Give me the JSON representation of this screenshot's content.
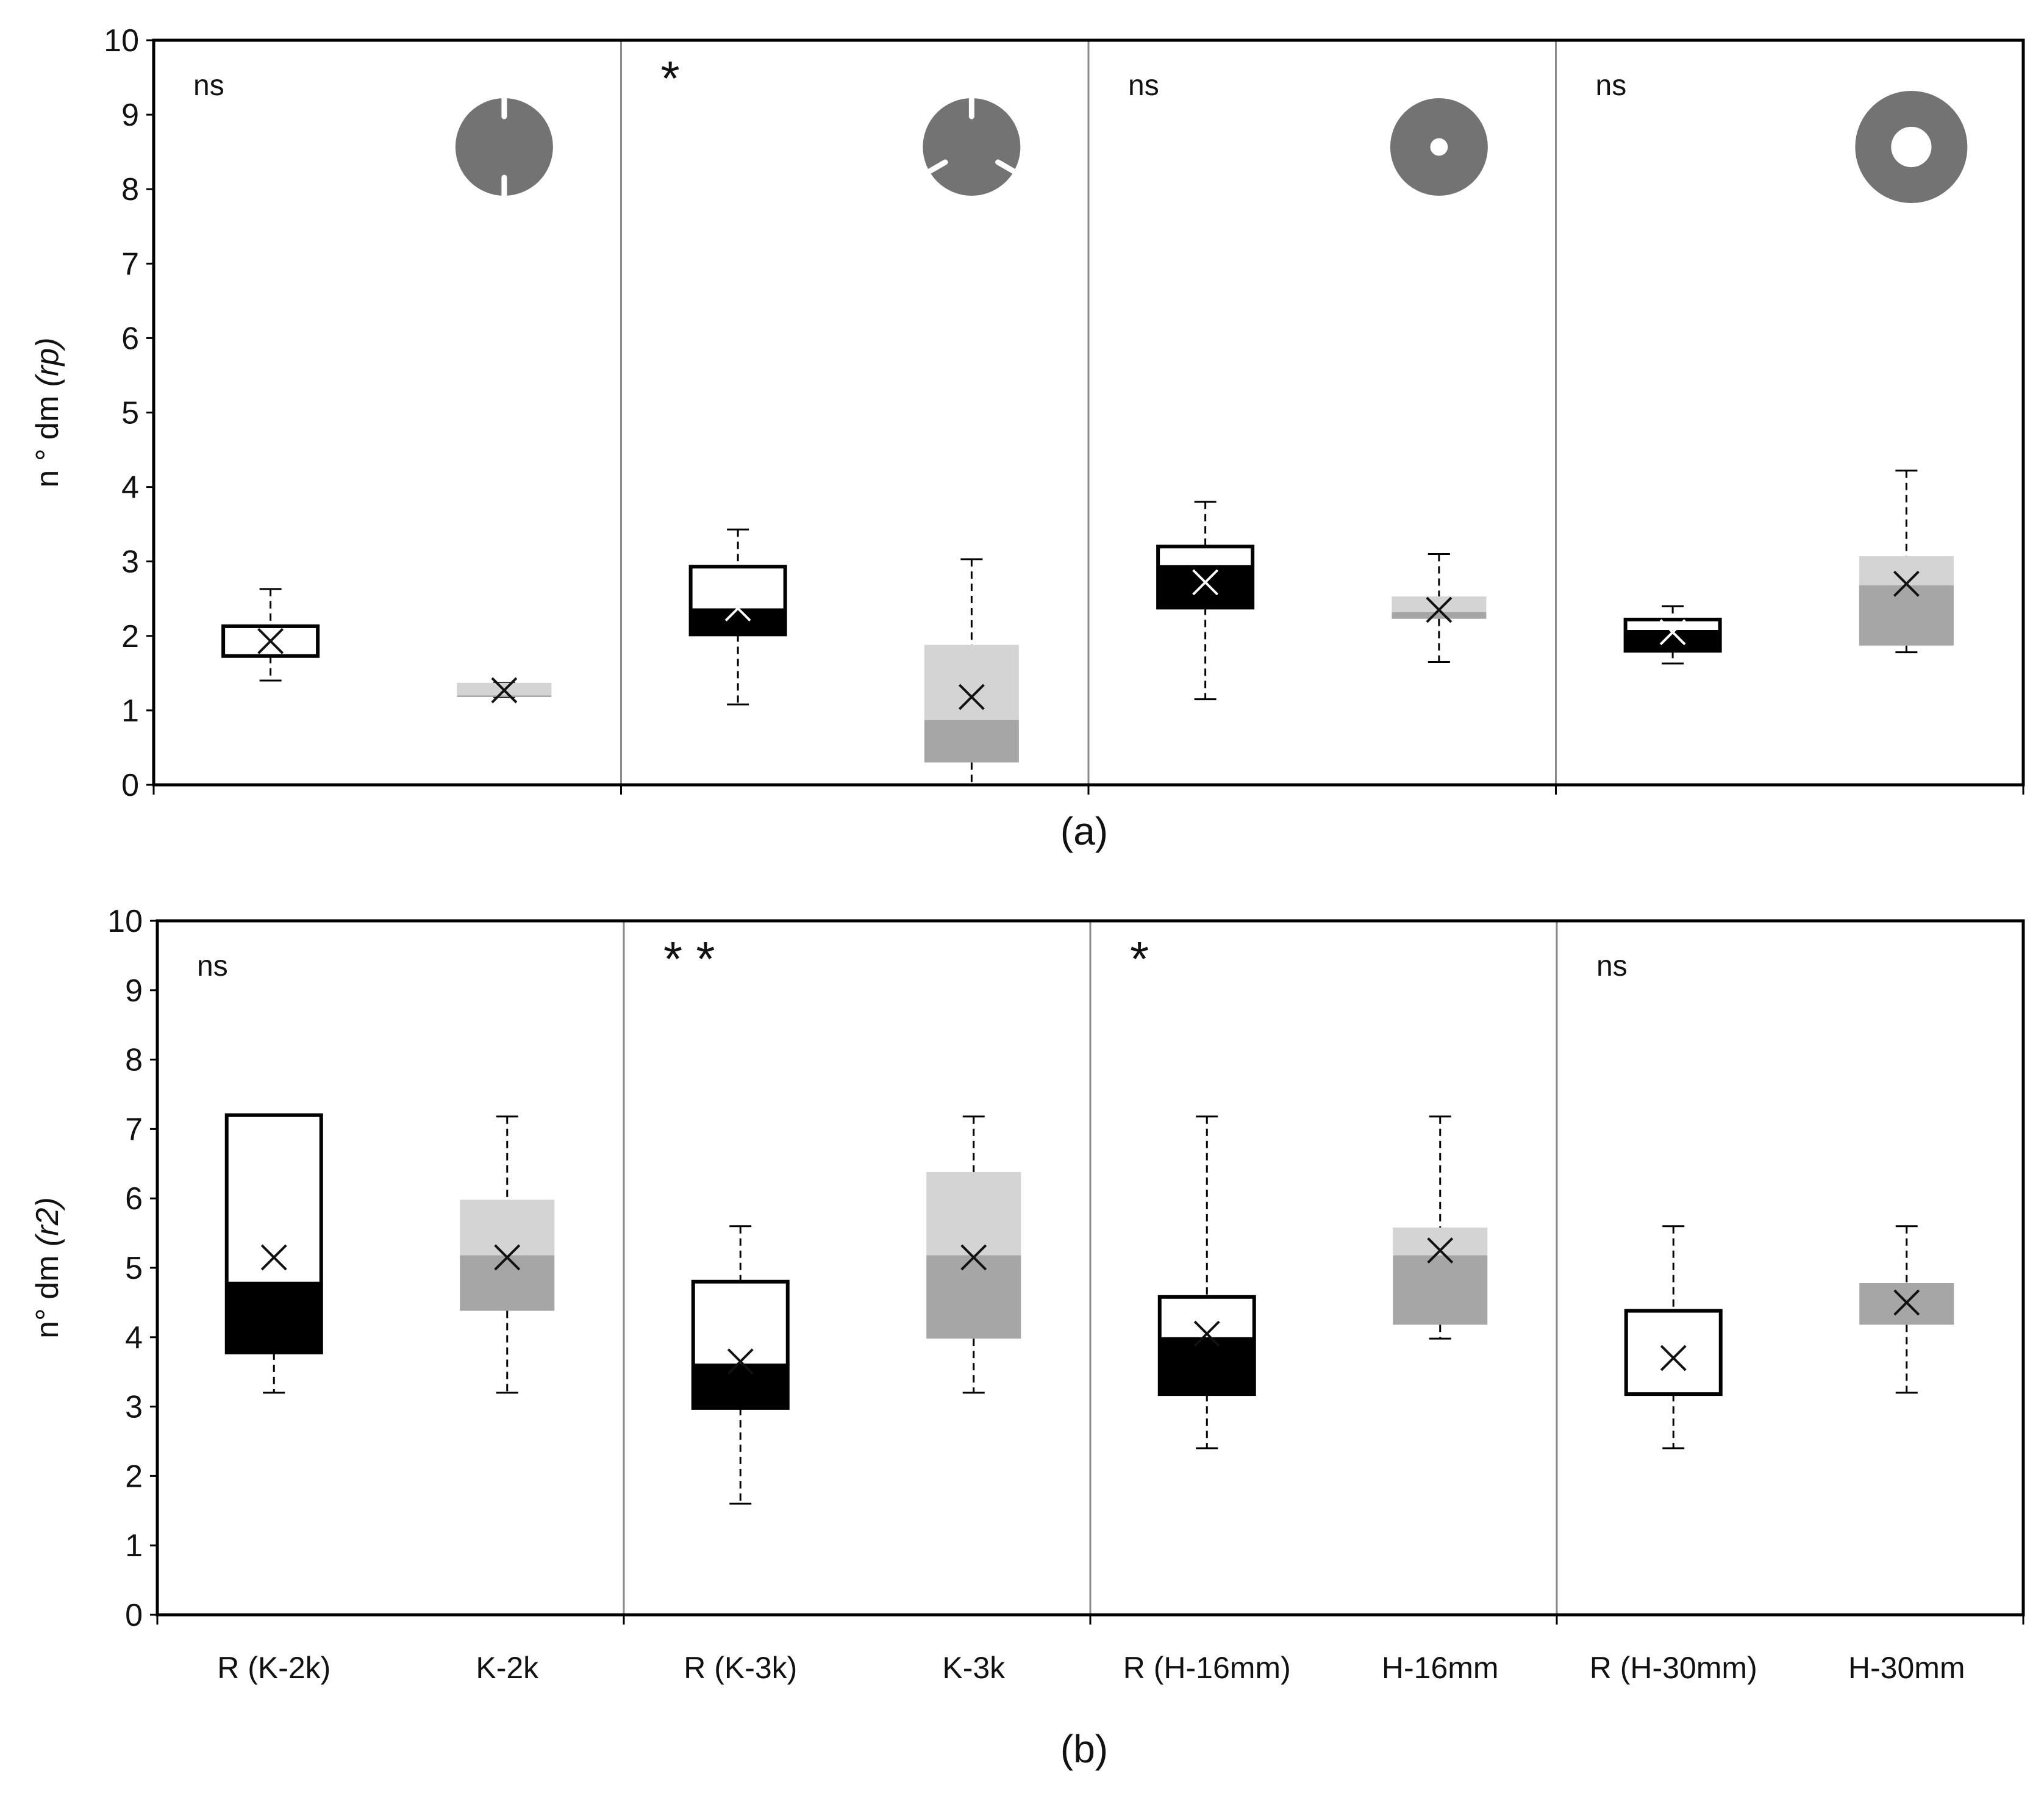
{
  "colors": {
    "frame": "#000000",
    "divider": "#8a8a8a",
    "whisker": "#000000",
    "ref_box_fill": "#ffffff",
    "ref_box_lower": "#000000",
    "k_box_upper": "#d4d4d4",
    "k_box_lower": "#a6a6a6",
    "icon": "#737373"
  },
  "chart_data": [
    {
      "type": "box",
      "panel_label": "(a)",
      "ylabel_prefix": "n ° dm ",
      "ylabel_var": "(rp)",
      "ylim": [
        0,
        10
      ],
      "yticks": [
        0,
        1,
        2,
        3,
        4,
        5,
        6,
        7,
        8,
        9,
        10
      ],
      "categories": [
        "R (K-2k)",
        "K-2k",
        "R (K-3k)",
        "K-3k",
        "R (H-16mm)",
        "H-16mm",
        "R (H-30mm)",
        "H-30mm"
      ],
      "show_category_labels": false,
      "significance": [
        "ns",
        "*",
        "ns",
        "ns"
      ],
      "shape_icons": [
        "k2k-section-icon",
        "k3k-section-icon",
        "h16mm-section-icon",
        "h30mm-section-icon"
      ],
      "boxes": [
        {
          "category": "R (K-2k)",
          "style": "ref",
          "min": 1.4,
          "q1": 1.73,
          "median": 1.73,
          "q3": 2.13,
          "max": 2.63,
          "mean": 1.93
        },
        {
          "category": "K-2k",
          "style": "k",
          "min": 1.18,
          "q1": 1.18,
          "median": 1.2,
          "q3": 1.37,
          "max": 1.37,
          "mean": 1.27
        },
        {
          "category": "R (K-3k)",
          "style": "ref",
          "min": 1.08,
          "q1": 2.02,
          "median": 2.37,
          "q3": 2.93,
          "max": 3.43,
          "mean": 2.37
        },
        {
          "category": "K-3k",
          "style": "k",
          "min": 0.0,
          "q1": 0.3,
          "median": 0.87,
          "q3": 1.88,
          "max": 3.03,
          "mean": 1.18
        },
        {
          "category": "R (H-16mm)",
          "style": "ref",
          "min": 1.15,
          "q1": 2.38,
          "median": 2.95,
          "q3": 3.2,
          "max": 3.8,
          "mean": 2.72
        },
        {
          "category": "H-16mm",
          "style": "k",
          "min": 1.65,
          "q1": 2.23,
          "median": 2.32,
          "q3": 2.53,
          "max": 3.1,
          "mean": 2.35
        },
        {
          "category": "R (H-30mm)",
          "style": "ref",
          "min": 1.63,
          "q1": 1.8,
          "median": 2.08,
          "q3": 2.22,
          "max": 2.4,
          "mean": 2.05
        },
        {
          "category": "H-30mm",
          "style": "k",
          "min": 1.78,
          "q1": 1.87,
          "median": 2.68,
          "q3": 3.07,
          "max": 4.22,
          "mean": 2.7
        }
      ]
    },
    {
      "type": "box",
      "panel_label": "(b)",
      "ylabel_prefix": "n° dm ",
      "ylabel_var": "(r2)",
      "ylim": [
        0,
        10
      ],
      "yticks": [
        0,
        1,
        2,
        3,
        4,
        5,
        6,
        7,
        8,
        9,
        10
      ],
      "categories": [
        "R (K-2k)",
        "K-2k",
        "R (K-3k)",
        "K-3k",
        "R (H-16mm)",
        "H-16mm",
        "R (H-30mm)",
        "H-30mm"
      ],
      "show_category_labels": true,
      "significance": [
        "ns",
        "* *",
        "*",
        "ns"
      ],
      "shape_icons": [],
      "boxes": [
        {
          "category": "R (K-2k)",
          "style": "ref",
          "min": 3.2,
          "q1": 3.78,
          "median": 4.8,
          "q3": 7.2,
          "max": 7.2,
          "mean": 5.15
        },
        {
          "category": "K-2k",
          "style": "k",
          "min": 3.2,
          "q1": 4.38,
          "median": 5.18,
          "q3": 5.98,
          "max": 7.18,
          "mean": 5.15
        },
        {
          "category": "R (K-3k)",
          "style": "ref",
          "min": 1.6,
          "q1": 2.98,
          "median": 3.62,
          "q3": 4.8,
          "max": 5.6,
          "mean": 3.65
        },
        {
          "category": "K-3k",
          "style": "k",
          "min": 3.2,
          "q1": 3.98,
          "median": 5.18,
          "q3": 6.38,
          "max": 7.18,
          "mean": 5.15
        },
        {
          "category": "R (H-16mm)",
          "style": "ref",
          "min": 2.4,
          "q1": 3.18,
          "median": 4.0,
          "q3": 4.58,
          "max": 7.18,
          "mean": 4.05
        },
        {
          "category": "H-16mm",
          "style": "k",
          "min": 3.98,
          "q1": 4.18,
          "median": 5.18,
          "q3": 5.58,
          "max": 7.18,
          "mean": 5.25
        },
        {
          "category": "R (H-30mm)",
          "style": "ref",
          "min": 2.4,
          "q1": 3.18,
          "median": 3.18,
          "q3": 4.38,
          "max": 5.6,
          "mean": 3.7
        },
        {
          "category": "H-30mm",
          "style": "k",
          "min": 3.2,
          "q1": 4.18,
          "median": 4.78,
          "q3": 4.78,
          "max": 5.6,
          "mean": 4.5
        }
      ]
    }
  ]
}
